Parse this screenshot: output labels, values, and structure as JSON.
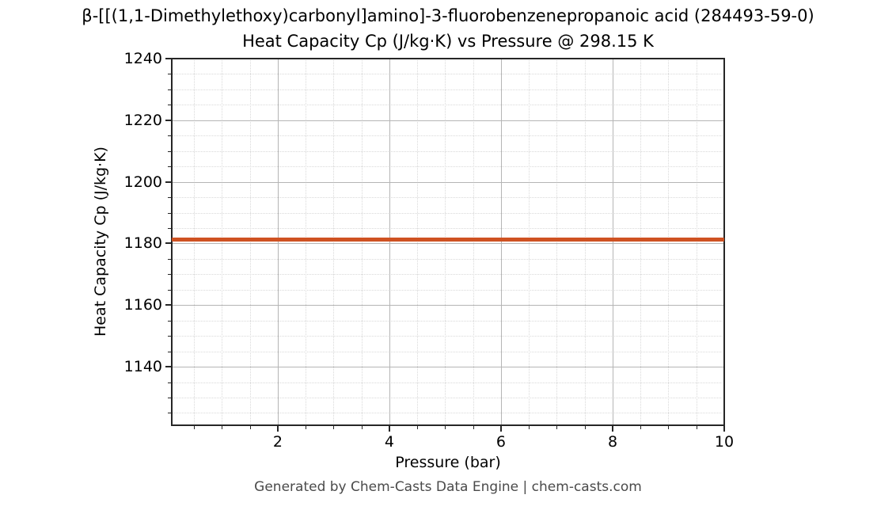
{
  "header": {
    "title_line1": "β-[[(1,1-Dimethylethoxy)carbonyl]amino]-3-fluorobenzenepropanoic acid (284493-59-0)",
    "title_line2": "Heat Capacity Cp (J/kg·K) vs Pressure @ 298.15 K"
  },
  "footer": {
    "credit": "Generated by Chem-Casts Data Engine | chem-casts.com"
  },
  "chart_data": {
    "type": "line",
    "title": "β-[[(1,1-Dimethylethoxy)carbonyl]amino]-3-fluorobenzenepropanoic acid (284493-59-0)",
    "subtitle": "Heat Capacity Cp (J/kg·K) vs Pressure @ 298.15 K",
    "xlabel": "Pressure (bar)",
    "ylabel": "Heat Capacity Cp (J/kg·K)",
    "xlim": [
      0.1,
      10
    ],
    "ylim": [
      1121,
      1240
    ],
    "x_major_ticks": [
      2,
      4,
      6,
      8,
      10
    ],
    "y_major_ticks": [
      1240,
      1220,
      1200,
      1180,
      1160,
      1140
    ],
    "x_minor_step": 0.5,
    "y_minor_step": 5,
    "grid": {
      "major": true,
      "minor": true,
      "major_color": "#b5b5b5",
      "minor_color": "#d9d9d9",
      "minor_style": "dotted"
    },
    "legend_position": "none",
    "background_color": "#ffffff",
    "series": [
      {
        "name": "Heat Capacity Cp",
        "color": "#cf5222",
        "x": [
          0.1,
          10.0
        ],
        "y": [
          1181.4,
          1181.4
        ],
        "constant_value": 1181.4,
        "shape": "horizontal constant line spanning full x-range"
      }
    ]
  }
}
